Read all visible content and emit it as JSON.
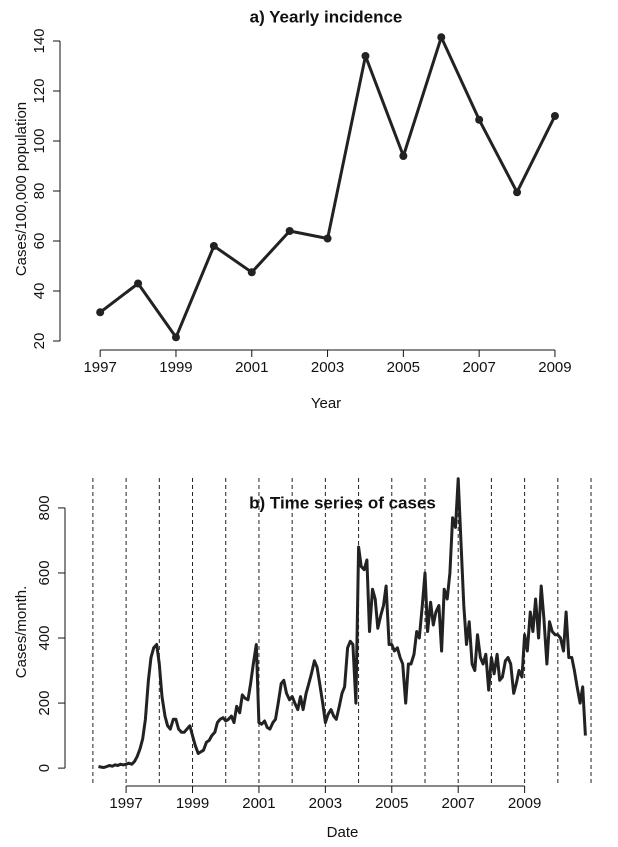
{
  "chart_data": [
    {
      "type": "line",
      "title": "a) Yearly incidence",
      "xlabel": "Year",
      "ylabel": "Cases/100,000 population",
      "x": [
        1997,
        1998,
        1999,
        2000,
        2001,
        2002,
        2003,
        2004,
        2005,
        2006,
        2007,
        2008,
        2009
      ],
      "values": [
        31.5,
        43,
        21.5,
        58,
        47.5,
        64,
        61,
        134,
        94,
        141.5,
        108.5,
        79.5,
        110
      ],
      "color": "#222222",
      "markers": true,
      "xlim": [
        1995.94,
        2009.45
      ],
      "xticks": [
        1997,
        1999,
        2001,
        2003,
        2005,
        2007,
        2009
      ],
      "ylim": [
        16.4,
        145.2
      ],
      "yticks": [
        20,
        40,
        60,
        80,
        100,
        120,
        140
      ]
    },
    {
      "type": "line",
      "title": "b) Time series of cases",
      "xlabel": "Date",
      "ylabel": "Cases/month.",
      "x": [
        1996.17,
        1996.25,
        1996.33,
        1996.42,
        1996.5,
        1996.58,
        1996.67,
        1996.75,
        1996.83,
        1996.92,
        1997,
        1997.08,
        1997.17,
        1997.25,
        1997.33,
        1997.42,
        1997.5,
        1997.58,
        1997.67,
        1997.75,
        1997.83,
        1997.92,
        1998,
        1998.08,
        1998.17,
        1998.25,
        1998.33,
        1998.42,
        1998.5,
        1998.58,
        1998.67,
        1998.75,
        1998.83,
        1998.92,
        1999,
        1999.08,
        1999.17,
        1999.25,
        1999.33,
        1999.42,
        1999.5,
        1999.58,
        1999.67,
        1999.75,
        1999.83,
        1999.92,
        2000,
        2000.08,
        2000.17,
        2000.25,
        2000.33,
        2000.42,
        2000.5,
        2000.58,
        2000.67,
        2000.75,
        2000.83,
        2000.92,
        2001,
        2001.08,
        2001.17,
        2001.25,
        2001.33,
        2001.42,
        2001.5,
        2001.58,
        2001.67,
        2001.75,
        2001.83,
        2001.92,
        2002,
        2002.08,
        2002.17,
        2002.25,
        2002.33,
        2002.42,
        2002.5,
        2002.58,
        2002.67,
        2002.75,
        2002.83,
        2002.92,
        2003,
        2003.08,
        2003.17,
        2003.25,
        2003.33,
        2003.42,
        2003.5,
        2003.58,
        2003.67,
        2003.75,
        2003.83,
        2003.92,
        2004,
        2004.08,
        2004.17,
        2004.25,
        2004.33,
        2004.42,
        2004.5,
        2004.58,
        2004.67,
        2004.75,
        2004.83,
        2004.92,
        2005,
        2005.08,
        2005.17,
        2005.25,
        2005.33,
        2005.42,
        2005.5,
        2005.58,
        2005.67,
        2005.75,
        2005.83,
        2005.92,
        2006,
        2006.08,
        2006.17,
        2006.25,
        2006.33,
        2006.42,
        2006.5,
        2006.58,
        2006.67,
        2006.75,
        2006.83,
        2006.92,
        2007,
        2007.08,
        2007.17,
        2007.25,
        2007.33,
        2007.42,
        2007.5,
        2007.58,
        2007.67,
        2007.75,
        2007.83,
        2007.92,
        2008,
        2008.08,
        2008.17,
        2008.25,
        2008.33,
        2008.42,
        2008.5,
        2008.58,
        2008.67,
        2008.75,
        2008.83,
        2008.92,
        2009,
        2009.08,
        2009.17,
        2009.25,
        2009.33,
        2009.42,
        2009.5,
        2009.58,
        2009.67,
        2009.75,
        2009.83,
        2009.92,
        2010,
        2010.08,
        2010.17,
        2010.25,
        2010.33,
        2010.42,
        2010.5,
        2010.58,
        2010.67,
        2010.75,
        2010.83
      ],
      "values": [
        5,
        3,
        2,
        5,
        8,
        6,
        10,
        8,
        12,
        10,
        12,
        15,
        12,
        20,
        35,
        60,
        90,
        150,
        270,
        340,
        370,
        380,
        320,
        220,
        160,
        130,
        120,
        150,
        150,
        120,
        110,
        110,
        120,
        130,
        100,
        70,
        45,
        50,
        55,
        80,
        85,
        100,
        110,
        140,
        150,
        155,
        145,
        150,
        160,
        140,
        190,
        170,
        225,
        215,
        210,
        260,
        320,
        380,
        140,
        135,
        145,
        125,
        120,
        140,
        150,
        200,
        260,
        270,
        230,
        210,
        220,
        200,
        180,
        220,
        180,
        230,
        260,
        290,
        330,
        310,
        260,
        200,
        140,
        165,
        180,
        160,
        150,
        190,
        230,
        250,
        370,
        390,
        380,
        200,
        680,
        620,
        610,
        640,
        420,
        550,
        520,
        430,
        470,
        500,
        560,
        380,
        380,
        360,
        370,
        340,
        320,
        200,
        320,
        320,
        350,
        420,
        400,
        500,
        600,
        420,
        510,
        440,
        480,
        500,
        360,
        550,
        520,
        600,
        770,
        740,
        890,
        700,
        500,
        380,
        450,
        320,
        300,
        410,
        340,
        320,
        350,
        240,
        340,
        290,
        350,
        270,
        280,
        330,
        340,
        320,
        230,
        260,
        300,
        280,
        410,
        360,
        480,
        420,
        520,
        400,
        560,
        460,
        320,
        450,
        420,
        410,
        410,
        400,
        360,
        480,
        340,
        340,
        300,
        250,
        200,
        250,
        100
      ],
      "color": "#222222",
      "markers": false,
      "vlines": [
        1996,
        1997,
        1998,
        1999,
        2000,
        2001,
        2002,
        2003,
        2004,
        2005,
        2006,
        2007,
        2008,
        2009,
        2010,
        2011
      ],
      "xlim": [
        1995.16,
        2011.27
      ],
      "xticks": [
        1997,
        1999,
        2001,
        2003,
        2005,
        2007,
        2009
      ],
      "ylim": [
        -55,
        892
      ],
      "yticks": [
        0,
        200,
        400,
        600,
        800
      ]
    }
  ]
}
